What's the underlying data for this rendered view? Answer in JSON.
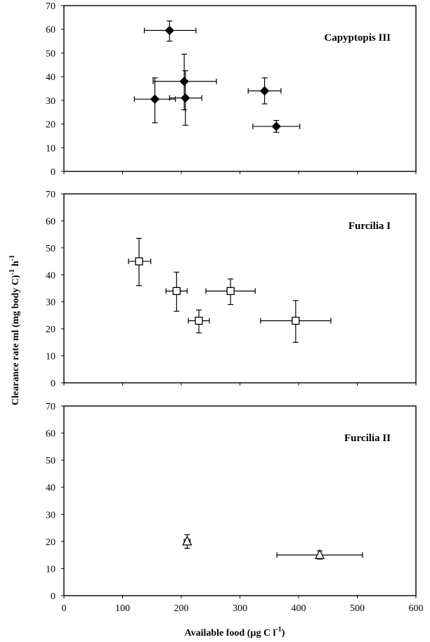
{
  "chart_data": [
    {
      "type": "scatter",
      "title": "Capyptopis III",
      "marker": "filled-diamond",
      "xlim": [
        0,
        600
      ],
      "ylim": [
        0,
        70
      ],
      "yticks": [
        0,
        10,
        20,
        30,
        40,
        50,
        60,
        70
      ],
      "grid": false,
      "series": [
        {
          "points": [
            {
              "x": 180,
              "y": 59.5,
              "xerr": [
                43,
                45
              ],
              "yerr": [
                4.5,
                4
              ]
            },
            {
              "x": 155,
              "y": 30.5,
              "xerr": [
                35,
                35
              ],
              "yerr": [
                10,
                9
              ]
            },
            {
              "x": 205,
              "y": 38,
              "xerr": [
                53,
                55
              ],
              "yerr": [
                12,
                11.5
              ]
            },
            {
              "x": 207,
              "y": 31,
              "xerr": [
                27,
                28
              ],
              "yerr": [
                11.5,
                11.5
              ]
            },
            {
              "x": 342,
              "y": 34,
              "xerr": [
                28,
                28
              ],
              "yerr": [
                5.5,
                5.5
              ]
            },
            {
              "x": 362,
              "y": 19,
              "xerr": [
                40,
                40
              ],
              "yerr": [
                2.5,
                2.5
              ]
            }
          ]
        }
      ]
    },
    {
      "type": "scatter",
      "title": "Furcilia I",
      "marker": "open-square",
      "xlim": [
        0,
        600
      ],
      "ylim": [
        0,
        70
      ],
      "yticks": [
        0,
        10,
        20,
        30,
        40,
        50,
        60,
        70
      ],
      "grid": false,
      "series": [
        {
          "points": [
            {
              "x": 128,
              "y": 45,
              "xerr": [
                18,
                20
              ],
              "yerr": [
                9,
                8.5
              ]
            },
            {
              "x": 192,
              "y": 34,
              "xerr": [
                18,
                18
              ],
              "yerr": [
                7.5,
                7
              ]
            },
            {
              "x": 230,
              "y": 23,
              "xerr": [
                18,
                18
              ],
              "yerr": [
                4.5,
                4
              ]
            },
            {
              "x": 284,
              "y": 34,
              "xerr": [
                42,
                42
              ],
              "yerr": [
                5,
                4.5
              ]
            },
            {
              "x": 395,
              "y": 23,
              "xerr": [
                60,
                60
              ],
              "yerr": [
                8,
                7.5
              ]
            }
          ]
        }
      ]
    },
    {
      "type": "scatter",
      "title": "Furcilia II",
      "marker": "open-triangle",
      "xlim": [
        0,
        600
      ],
      "xticks": [
        0,
        100,
        200,
        300,
        400,
        500,
        600
      ],
      "ylim": [
        0,
        70
      ],
      "yticks": [
        0,
        10,
        20,
        30,
        40,
        50,
        60,
        70
      ],
      "grid": false,
      "series": [
        {
          "points": [
            {
              "x": 210,
              "y": 20,
              "xerr": [
                5,
                5
              ],
              "yerr": [
                2.5,
                2.5
              ]
            },
            {
              "x": 436,
              "y": 15,
              "xerr": [
                73,
                73
              ],
              "yerr": [
                1.5,
                1.5
              ]
            }
          ]
        }
      ]
    }
  ],
  "axes": {
    "ylabel": "Clearance rate ml  (mg body  C)",
    "ylabel_sup_1": "-1",
    "ylabel_unit": "h",
    "ylabel_sup_2": "-1",
    "xlabel": "Available food  (µg C l",
    "xlabel_sup": "-1",
    "xlabel_close": ")"
  }
}
